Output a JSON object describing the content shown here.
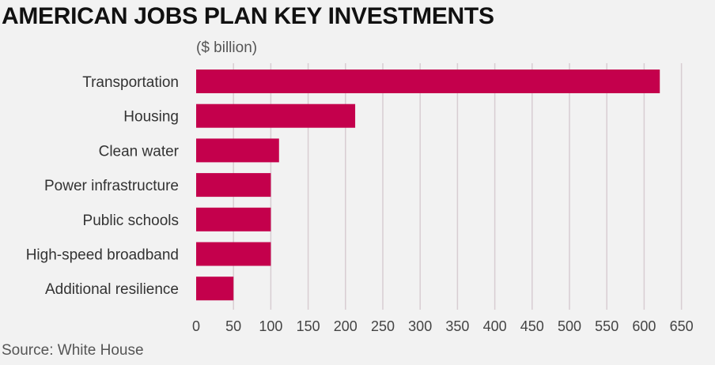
{
  "title": "AMERICAN JOBS PLAN KEY INVESTMENTS",
  "unit": "($ billion)",
  "source": "Source: White House",
  "colors": {
    "bar": "#c4004c",
    "background": "#f2f2f2",
    "grid": "#d8cdd2"
  },
  "chart_data": {
    "type": "bar",
    "orientation": "horizontal",
    "title": "AMERICAN JOBS PLAN KEY INVESTMENTS",
    "unit": "($ billion)",
    "categories": [
      "Transportation",
      "Housing",
      "Clean water",
      "Power infrastructure",
      "Public schools",
      "High-speed broadband",
      "Additional resilience"
    ],
    "values": [
      621,
      213,
      111,
      100,
      100,
      100,
      50
    ],
    "xlim": [
      0,
      650
    ],
    "xticks": [
      0,
      50,
      100,
      150,
      200,
      250,
      300,
      350,
      400,
      450,
      500,
      550,
      600,
      650
    ],
    "grid": "vertical",
    "source": "Source: White House"
  }
}
